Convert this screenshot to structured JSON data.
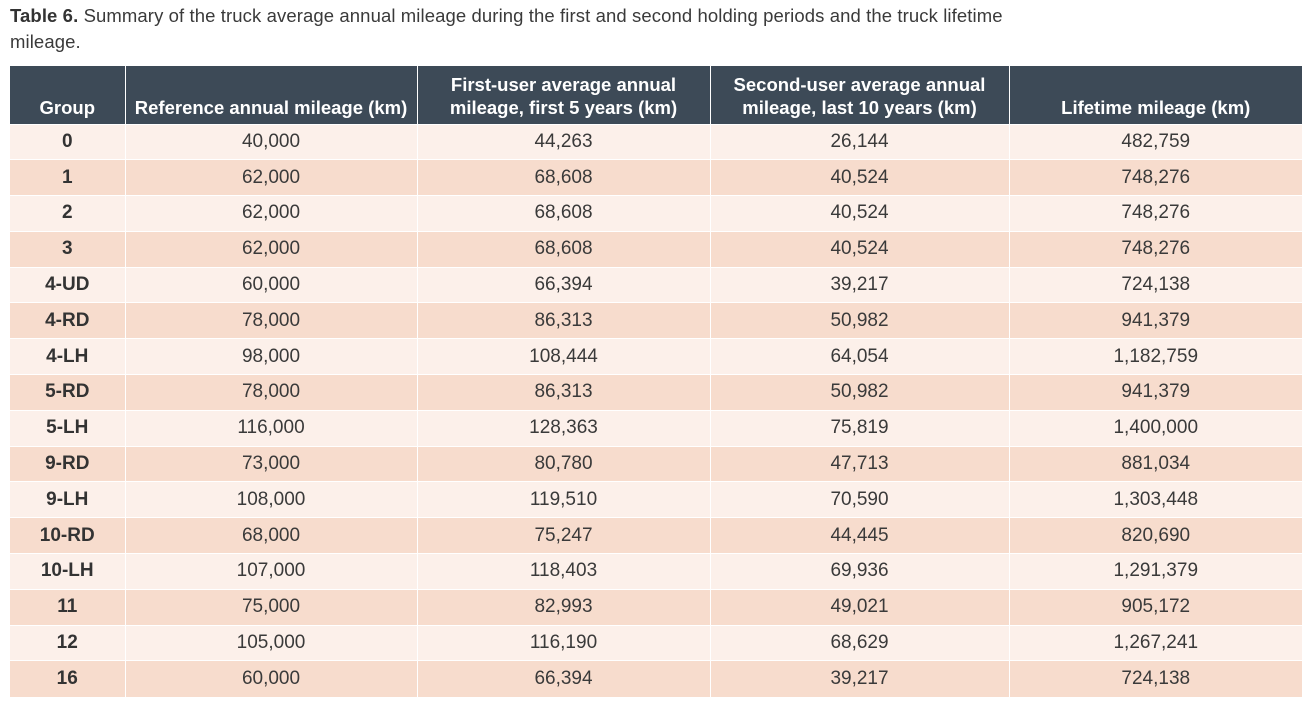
{
  "caption": {
    "label": "Table 6.",
    "text": " Summary of the truck average annual mileage during the first and second holding periods and the truck lifetime mileage."
  },
  "colors": {
    "header_bg": "#3d4a57",
    "row_light": "#fcf0ea",
    "row_dark": "#f7dccd"
  },
  "table": {
    "headers": [
      "Group",
      "Reference annual mileage (km)",
      "First-user average annual mileage, first 5 years (km)",
      "Second-user average annual mileage, last 10 years (km)",
      "Lifetime mileage (km)"
    ],
    "rows": [
      [
        "0",
        "40,000",
        "44,263",
        "26,144",
        "482,759"
      ],
      [
        "1",
        "62,000",
        "68,608",
        "40,524",
        "748,276"
      ],
      [
        "2",
        "62,000",
        "68,608",
        "40,524",
        "748,276"
      ],
      [
        "3",
        "62,000",
        "68,608",
        "40,524",
        "748,276"
      ],
      [
        "4-UD",
        "60,000",
        "66,394",
        "39,217",
        "724,138"
      ],
      [
        "4-RD",
        "78,000",
        "86,313",
        "50,982",
        "941,379"
      ],
      [
        "4-LH",
        "98,000",
        "108,444",
        "64,054",
        "1,182,759"
      ],
      [
        "5-RD",
        "78,000",
        "86,313",
        "50,982",
        "941,379"
      ],
      [
        "5-LH",
        "116,000",
        "128,363",
        "75,819",
        "1,400,000"
      ],
      [
        "9-RD",
        "73,000",
        "80,780",
        "47,713",
        "881,034"
      ],
      [
        "9-LH",
        "108,000",
        "119,510",
        "70,590",
        "1,303,448"
      ],
      [
        "10-RD",
        "68,000",
        "75,247",
        "44,445",
        "820,690"
      ],
      [
        "10-LH",
        "107,000",
        "118,403",
        "69,936",
        "1,291,379"
      ],
      [
        "11",
        "75,000",
        "82,993",
        "49,021",
        "905,172"
      ],
      [
        "12",
        "105,000",
        "116,190",
        "68,629",
        "1,267,241"
      ],
      [
        "16",
        "60,000",
        "66,394",
        "39,217",
        "724,138"
      ]
    ]
  }
}
